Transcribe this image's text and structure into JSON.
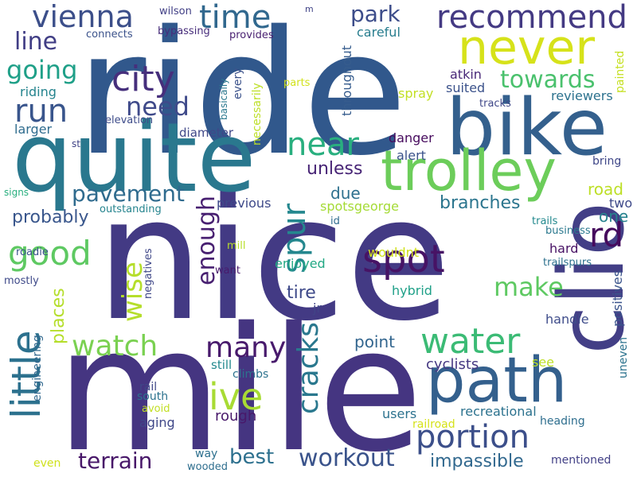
{
  "palette": {
    "background": "#ffffff",
    "colormap": "viridis"
  },
  "words": [
    {
      "text": "ride",
      "color": "#31588c"
    },
    {
      "text": "nice",
      "color": "#433a84"
    },
    {
      "text": "mile",
      "color": "#453581"
    },
    {
      "text": "quite",
      "color": "#2a788e"
    },
    {
      "text": "bike",
      "color": "#34608d"
    },
    {
      "text": "trolley",
      "color": "#6ccd5a"
    },
    {
      "text": "clio",
      "color": "#433f86"
    },
    {
      "text": "path",
      "color": "#34608d"
    },
    {
      "text": "never",
      "color": "#d6e21a"
    },
    {
      "text": "recommend",
      "color": "#443a83"
    },
    {
      "text": "vienna",
      "color": "#3c4f8a"
    },
    {
      "text": "time",
      "color": "#31688e"
    },
    {
      "text": "city",
      "color": "#462f7c"
    },
    {
      "text": "run",
      "color": "#39558c"
    },
    {
      "text": "line",
      "color": "#413e85"
    },
    {
      "text": "going",
      "color": "#1fa088"
    },
    {
      "text": "need",
      "color": "#3f4a8a"
    },
    {
      "text": "park",
      "color": "#3d4d8a"
    },
    {
      "text": "towards",
      "color": "#4ac16d"
    },
    {
      "text": "near",
      "color": "#29af7f"
    },
    {
      "text": "spot",
      "color": "#471365"
    },
    {
      "text": "rd",
      "color": "#460a5d"
    },
    {
      "text": "good",
      "color": "#5ec962"
    },
    {
      "text": "little",
      "color": "#2c718e"
    },
    {
      "text": "pavement",
      "color": "#2f6b8e"
    },
    {
      "text": "spur",
      "color": "#24878e"
    },
    {
      "text": "unless",
      "color": "#482576"
    },
    {
      "text": "water",
      "color": "#3bbb75"
    },
    {
      "text": "portion",
      "color": "#3c4f8a"
    },
    {
      "text": "many",
      "color": "#481a6c"
    },
    {
      "text": "watch",
      "color": "#7ad151"
    },
    {
      "text": "ive",
      "color": "#a8db34"
    },
    {
      "text": "cracks",
      "color": "#2a788e"
    },
    {
      "text": "make",
      "color": "#5ec962"
    },
    {
      "text": "wise",
      "color": "#b5de2b"
    },
    {
      "text": "enough",
      "color": "#482071"
    },
    {
      "text": "workout",
      "color": "#3a538b"
    },
    {
      "text": "best",
      "color": "#2d708e"
    },
    {
      "text": "terrain",
      "color": "#481769"
    },
    {
      "text": "impassible",
      "color": "#31688e"
    },
    {
      "text": "branches",
      "color": "#2b758e"
    },
    {
      "text": "probably",
      "color": "#39568c"
    },
    {
      "text": "places",
      "color": "#b5de2b"
    },
    {
      "text": "road",
      "color": "#bddf26"
    },
    {
      "text": "point",
      "color": "#32658e"
    },
    {
      "text": "tire",
      "color": "#3e4989"
    },
    {
      "text": "one",
      "color": "#26828e"
    },
    {
      "text": "due",
      "color": "#2d708e"
    },
    {
      "text": "diameter",
      "color": "#3f4788"
    },
    {
      "text": "recreational",
      "color": "#2c728e"
    },
    {
      "text": "cyclists",
      "color": "#453882"
    },
    {
      "text": "users",
      "color": "#2c728e"
    },
    {
      "text": "rough",
      "color": "#48186a"
    },
    {
      "text": "aging",
      "color": "#3f4788"
    },
    {
      "text": "enjoyed",
      "color": "#22a884"
    },
    {
      "text": "handle",
      "color": "#3e4c8a"
    },
    {
      "text": "hard",
      "color": "#471164"
    },
    {
      "text": "jr",
      "color": "#414487"
    },
    {
      "text": "larger",
      "color": "#2f6c8e"
    },
    {
      "text": "riding",
      "color": "#25848e"
    },
    {
      "text": "alert",
      "color": "#3b528b"
    },
    {
      "text": "danger",
      "color": "#460a5d"
    },
    {
      "text": "previous",
      "color": "#3e4989"
    },
    {
      "text": "atkin",
      "color": "#482878"
    },
    {
      "text": "suited",
      "color": "#3b528b"
    },
    {
      "text": "careful",
      "color": "#287d8e"
    },
    {
      "text": "throughout",
      "color": "#365c8d"
    },
    {
      "text": "spray",
      "color": "#c2df23"
    },
    {
      "text": "reviewers",
      "color": "#2c728e"
    },
    {
      "text": "bring",
      "color": "#3f4788"
    },
    {
      "text": "two",
      "color": "#3e4989"
    },
    {
      "text": "spotsgeorge",
      "color": "#a5db36"
    },
    {
      "text": "wouldnt",
      "color": "#d0e11c"
    },
    {
      "text": "hybrid",
      "color": "#1fa088"
    },
    {
      "text": "see",
      "color": "#bddf26"
    },
    {
      "text": "heading",
      "color": "#2e6e8e"
    },
    {
      "text": "mentioned",
      "color": "#424086"
    },
    {
      "text": "railroad",
      "color": "#d5e21a"
    },
    {
      "text": "positives",
      "color": "#3a548c"
    },
    {
      "text": "uneven",
      "color": "#2c738e"
    },
    {
      "text": "painted",
      "color": "#c5e021"
    },
    {
      "text": "tracks",
      "color": "#3f4788"
    },
    {
      "text": "parts",
      "color": "#d2e21b"
    },
    {
      "text": "business",
      "color": "#2a788e"
    },
    {
      "text": "trails",
      "color": "#23898e"
    },
    {
      "text": "trailspurs",
      "color": "#2d718e"
    },
    {
      "text": "provides",
      "color": "#481f70"
    },
    {
      "text": "connects",
      "color": "#3b528b"
    },
    {
      "text": "bypassing",
      "color": "#472d7b"
    },
    {
      "text": "wilson",
      "color": "#424086"
    },
    {
      "text": "m",
      "color": "#414487"
    },
    {
      "text": "basically",
      "color": "#2a788e"
    },
    {
      "text": "every",
      "color": "#3b528b"
    },
    {
      "text": "necessarily",
      "color": "#bddf26"
    },
    {
      "text": "elevation",
      "color": "#3e4c8a"
    },
    {
      "text": "st",
      "color": "#414487"
    },
    {
      "text": "signs",
      "color": "#29af7f"
    },
    {
      "text": "outstanding",
      "color": "#25848e"
    },
    {
      "text": "roadie",
      "color": "#3b528b"
    },
    {
      "text": "mill",
      "color": "#b8de29"
    },
    {
      "text": "want",
      "color": "#481a6c"
    },
    {
      "text": "negatives",
      "color": "#3f4788"
    },
    {
      "text": "id",
      "color": "#2f6c8e"
    },
    {
      "text": "mostly",
      "color": "#3e4989"
    },
    {
      "text": "still",
      "color": "#23898e"
    },
    {
      "text": "climbs",
      "color": "#2c728e"
    },
    {
      "text": "engineering",
      "color": "#31688e"
    },
    {
      "text": "rail",
      "color": "#3f4788"
    },
    {
      "text": "south",
      "color": "#2c728e"
    },
    {
      "text": "avoid",
      "color": "#c2df23"
    },
    {
      "text": "way",
      "color": "#2d708e"
    },
    {
      "text": "even",
      "color": "#cfe11c"
    },
    {
      "text": "wooded",
      "color": "#2e6e8e"
    }
  ]
}
